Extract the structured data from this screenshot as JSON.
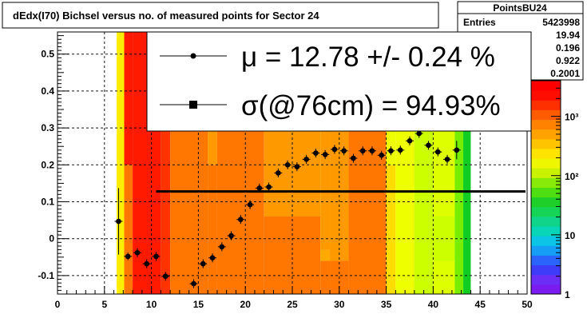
{
  "chart_data": {
    "type": "scatter",
    "title": "dEdx(I70) Bichsel versus no. of measured points for Sector 24",
    "xlim": [
      0,
      50
    ],
    "ylim": [
      -0.15,
      0.56
    ],
    "xticks": [
      "0",
      "5",
      "10",
      "15",
      "20",
      "25",
      "30",
      "35",
      "40",
      "45",
      "50"
    ],
    "yticks": [
      "-0.1",
      "0",
      "0.1",
      "0.2",
      "0.3",
      "0.4",
      "0.5"
    ],
    "grid": true,
    "colorbar": {
      "scale": "log",
      "ticks": [
        "1",
        "10",
        "10²",
        "10³"
      ],
      "range": [
        1,
        4000
      ]
    },
    "heatmap_columns": [
      {
        "x0": 6.3,
        "x1": 7.1,
        "zones": [
          [
            -0.16,
            0.56,
            "#ffee00"
          ]
        ]
      },
      {
        "x0": 7.1,
        "x1": 8.0,
        "zones": [
          [
            -0.16,
            0.2,
            "#ff7700"
          ],
          [
            0.2,
            0.56,
            "#ff1a00"
          ]
        ]
      },
      {
        "x0": 8.0,
        "x1": 11.0,
        "zones": [
          [
            -0.16,
            0.56,
            "#ff1a00"
          ]
        ]
      },
      {
        "x0": 11.0,
        "x1": 12.0,
        "zones": [
          [
            -0.16,
            0.3,
            "#ff3300"
          ],
          [
            0.3,
            0.56,
            "#ff1a00"
          ]
        ]
      },
      {
        "x0": 12.0,
        "x1": 16.0,
        "zones": [
          [
            -0.16,
            0.56,
            "#ff7700"
          ]
        ]
      },
      {
        "x0": 16.0,
        "x1": 17.0,
        "zones": [
          [
            -0.16,
            0.2,
            "#ff7700"
          ],
          [
            0.2,
            0.3,
            "#ff9900"
          ],
          [
            0.3,
            0.56,
            "#ff7700"
          ]
        ]
      },
      {
        "x0": 17.0,
        "x1": 22.0,
        "zones": [
          [
            -0.16,
            0.56,
            "#ff7700"
          ]
        ]
      },
      {
        "x0": 22.0,
        "x1": 28.0,
        "zones": [
          [
            -0.16,
            0.06,
            "#ff7700"
          ],
          [
            0.06,
            0.4,
            "#ff9900"
          ],
          [
            0.4,
            0.56,
            "#ff7700"
          ]
        ]
      },
      {
        "x0": 28.0,
        "x1": 29.0,
        "zones": [
          [
            -0.16,
            -0.06,
            "#ff7700"
          ],
          [
            -0.06,
            -0.03,
            "#ffaa00"
          ],
          [
            -0.03,
            0.44,
            "#ff9900"
          ],
          [
            0.44,
            0.56,
            "#ff7700"
          ]
        ]
      },
      {
        "x0": 29.0,
        "x1": 31.0,
        "zones": [
          [
            -0.16,
            -0.06,
            "#ff7700"
          ],
          [
            -0.06,
            0.44,
            "#ff9900"
          ],
          [
            0.44,
            0.56,
            "#ff7700"
          ]
        ]
      },
      {
        "x0": 31.0,
        "x1": 35.0,
        "zones": [
          [
            -0.16,
            0.56,
            "#ff7700"
          ]
        ]
      },
      {
        "x0": 35.0,
        "x1": 36.0,
        "zones": [
          [
            -0.16,
            0.2,
            "#ffdd00"
          ],
          [
            0.2,
            0.56,
            "#eeff00"
          ]
        ]
      },
      {
        "x0": 36.0,
        "x1": 38.0,
        "zones": [
          [
            -0.16,
            0.56,
            "#eeff00"
          ]
        ]
      },
      {
        "x0": 38.0,
        "x1": 40.0,
        "zones": [
          [
            -0.16,
            0.56,
            "#ccff00"
          ]
        ]
      },
      {
        "x0": 40.0,
        "x1": 42.3,
        "zones": [
          [
            -0.16,
            -0.06,
            "#ddff00"
          ],
          [
            -0.06,
            0.06,
            "#ccff00"
          ],
          [
            0.06,
            0.56,
            "#ddff00"
          ]
        ]
      },
      {
        "x0": 42.3,
        "x1": 43.2,
        "zones": [
          [
            -0.16,
            0.56,
            "#77ee00"
          ]
        ]
      },
      {
        "x0": 43.2,
        "x1": 44.0,
        "zones": [
          [
            -0.16,
            0.56,
            "#11cc22"
          ]
        ]
      }
    ],
    "series": [
      {
        "x": [
          6.5,
          7.5,
          8.5,
          9.5,
          10.5,
          11.5,
          14.5,
          15.5,
          16.5,
          17.5,
          18.5,
          19.5,
          20.5,
          21.5,
          22.5,
          23.5,
          24.5,
          25.5,
          26.5,
          27.5,
          28.5,
          29.5,
          30.5,
          31.5,
          32.5,
          33.5,
          34.5,
          35.5,
          36.5,
          37.5,
          38.5,
          39.5,
          40.5,
          41.5,
          42.5
        ],
        "y": [
          0.047,
          -0.048,
          -0.038,
          -0.068,
          -0.048,
          -0.102,
          -0.122,
          -0.068,
          -0.052,
          -0.022,
          0.008,
          0.052,
          0.092,
          0.137,
          0.14,
          0.178,
          0.2,
          0.195,
          0.215,
          0.232,
          0.228,
          0.242,
          0.238,
          0.218,
          0.238,
          0.238,
          0.226,
          0.238,
          0.24,
          0.265,
          0.285,
          0.253,
          0.235,
          0.215,
          0.24
        ],
        "err": [
          0.09,
          0.01,
          0.012,
          0.012,
          0.012,
          0.012,
          0.012,
          0.012,
          0.012,
          0.012,
          0.012,
          0.012,
          0.012,
          0.012,
          0.012,
          0.012,
          0.012,
          0.012,
          0.012,
          0.012,
          0.012,
          0.012,
          0.012,
          0.012,
          0.012,
          0.012,
          0.012,
          0.012,
          0.012,
          0.012,
          0.012,
          0.012,
          0.012,
          0.012,
          0.025
        ]
      }
    ],
    "fit_line": {
      "x": [
        10.5,
        50
      ],
      "y": [
        0.128,
        0.128
      ]
    }
  },
  "stats": {
    "title": "PointsBU24",
    "entries_label": "Entries",
    "entries_value": "5423998",
    "rows": [
      "19.94",
      "0.196",
      "0.922",
      "0.2001"
    ]
  },
  "legend": {
    "mu_text": "μ  = 12.78 +/-  0.24 %",
    "sigma_text": "σ(@76cm) = 94.93%"
  }
}
